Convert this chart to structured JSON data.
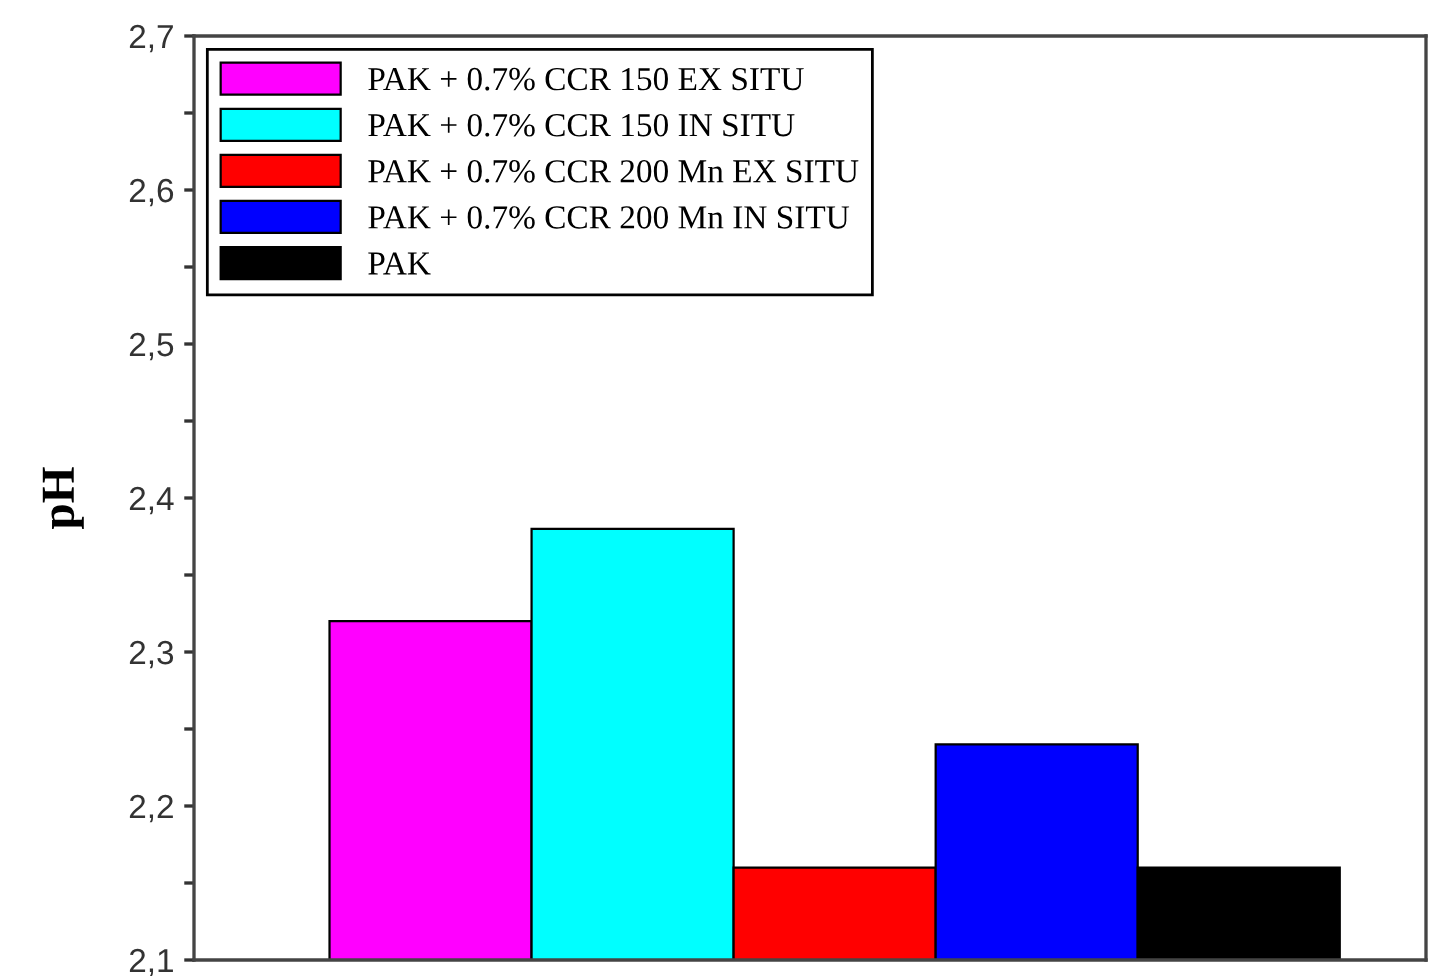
{
  "chart_data": {
    "type": "bar",
    "ylabel": "pH",
    "categories": [
      null
    ],
    "series": [
      {
        "name": "PAK + 0.7% CCR 150 EX SITU",
        "color": "#ff00ff",
        "values": [
          2.32
        ]
      },
      {
        "name": "PAK + 0.7% CCR 150 IN SITU",
        "color": "#00ffff",
        "values": [
          2.38
        ]
      },
      {
        "name": "PAK + 0.7% CCR 200 Mn EX SITU",
        "color": "#ff0000",
        "values": [
          2.16
        ]
      },
      {
        "name": "PAK + 0.7% CCR 200 Mn IN SITU",
        "color": "#0000ff",
        "values": [
          2.24
        ]
      },
      {
        "name": "PAK",
        "color": "#000000",
        "values": [
          2.16
        ]
      }
    ],
    "ylim": [
      2.1,
      2.7
    ],
    "yticks": [
      {
        "value": 2.1,
        "label": "2,1"
      },
      {
        "value": 2.15,
        "label": null
      },
      {
        "value": 2.2,
        "label": "2,2"
      },
      {
        "value": 2.25,
        "label": null
      },
      {
        "value": 2.3,
        "label": "2,3"
      },
      {
        "value": 2.35,
        "label": null
      },
      {
        "value": 2.4,
        "label": "2,4"
      },
      {
        "value": 2.45,
        "label": null
      },
      {
        "value": 2.5,
        "label": "2,5"
      },
      {
        "value": 2.55,
        "label": null
      },
      {
        "value": 2.6,
        "label": "2,6"
      },
      {
        "value": 2.65,
        "label": null
      },
      {
        "value": 2.7,
        "label": "2,7"
      }
    ],
    "tick_labels": "y",
    "grid": false,
    "legend": "top left"
  }
}
